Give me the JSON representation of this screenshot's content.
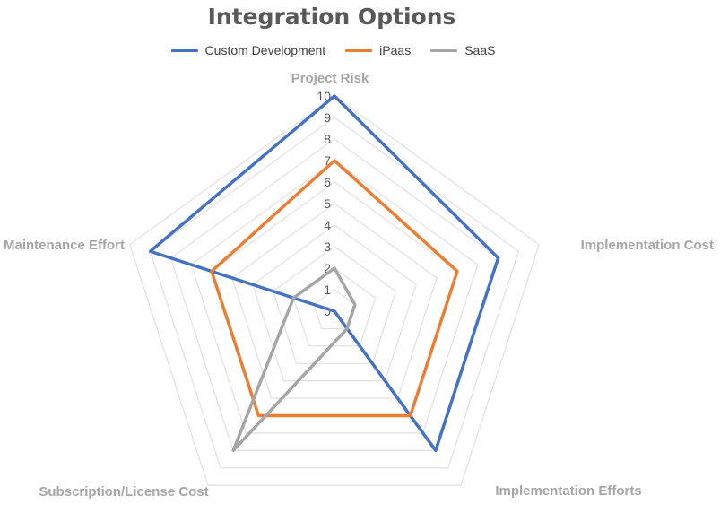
{
  "chart_data": {
    "type": "radar",
    "title": "Integration Options",
    "categories": [
      "Project Risk",
      "Implementation Cost",
      "Implementation Efforts",
      "Subscription/License Cost",
      "Maintenance Effort"
    ],
    "series": [
      {
        "name": "Custom Development",
        "color": "#4472c4",
        "values": [
          10,
          8,
          8,
          0,
          9
        ]
      },
      {
        "name": "iPaas",
        "color": "#ed7d31",
        "values": [
          7,
          6,
          6,
          6,
          6
        ]
      },
      {
        "name": "SaaS",
        "color": "#a5a5a5",
        "values": [
          2,
          1,
          1,
          8,
          2
        ]
      }
    ],
    "rlim": [
      0,
      10
    ],
    "ticks": [
      "0",
      "1",
      "2",
      "3",
      "4",
      "5",
      "6",
      "7",
      "8",
      "9",
      "10"
    ],
    "grid": true,
    "legend_position": "top"
  }
}
